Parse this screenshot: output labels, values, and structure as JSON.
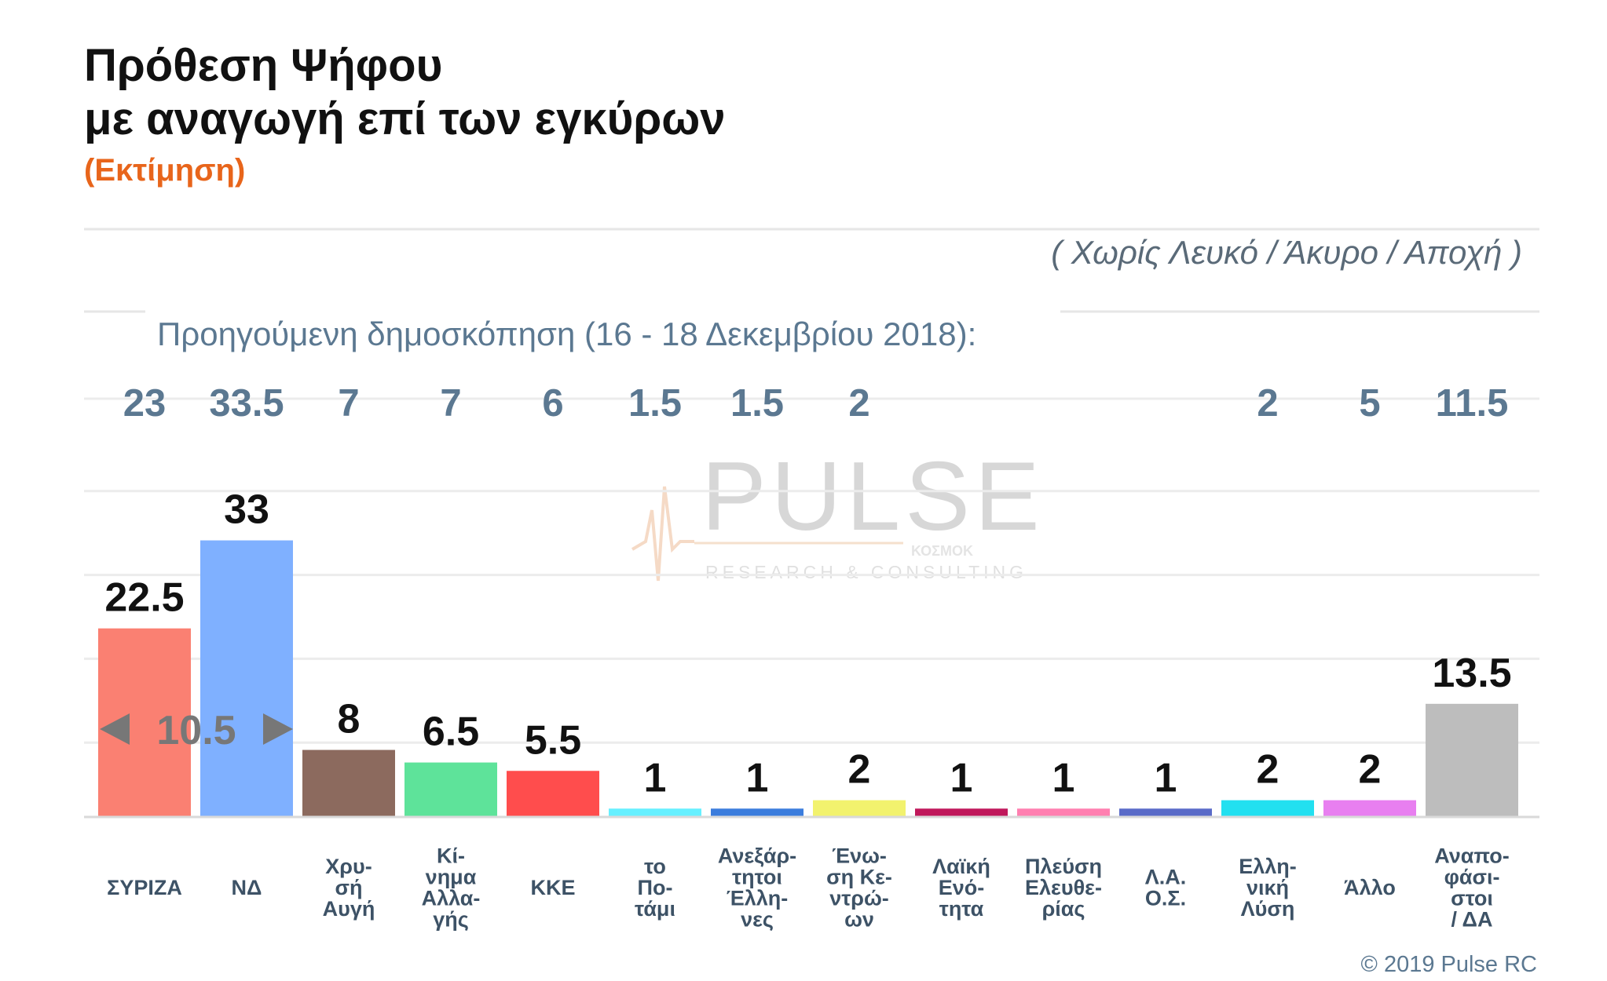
{
  "title_line1": "Πρόθεση Ψήφου",
  "title_line2": "με αναγωγή επί των εγκύρων",
  "subtitle": "(Εκτίμηση)",
  "note": "( Χωρίς Λευκό / Άκυρο / Αποχή )",
  "previous_label": "Προηγούμενη δημοσκόπηση (16 - 18 Δεκεμβρίου 2018):",
  "source": "© 2019 Pulse RC",
  "watermark": {
    "brand": "PULSE",
    "tagline": "RESEARCH & CONSULTING",
    "partner": "ΚΟΣΜΟΚ"
  },
  "chart_data": {
    "type": "bar",
    "title": "Πρόθεση Ψήφου με αναγωγή επί των εγκύρων",
    "subtitle": "(Εκτίμηση)",
    "categories": [
      [
        "ΣΥΡΙΖΑ"
      ],
      [
        "ΝΔ"
      ],
      [
        "Χρυ-",
        "σή",
        "Αυγή"
      ],
      [
        "Κί-",
        "νημα",
        "Αλλα-",
        "γής"
      ],
      [
        "ΚΚΕ"
      ],
      [
        "το",
        "Πο-",
        "τάμι"
      ],
      [
        "Ανεξάρ-",
        "τητοι",
        "Έλλη-",
        "νες"
      ],
      [
        "Ένω-",
        "ση Κε-",
        "ντρώ-",
        "ων"
      ],
      [
        "Λαϊκή",
        "Ενό-",
        "τητα"
      ],
      [
        "Πλεύση",
        "Ελευθε-",
        "ρίας"
      ],
      [
        "Λ.Α.",
        "Ο.Σ."
      ],
      [
        "Ελλη-",
        "νική",
        "Λύση"
      ],
      [
        "Άλλο"
      ],
      [
        "Αναπο-",
        "φάσι-",
        "στοι",
        "/ ΔΑ"
      ]
    ],
    "values": [
      22.5,
      33,
      8,
      6.5,
      5.5,
      1,
      1,
      2,
      1,
      1,
      1,
      2,
      2,
      13.5
    ],
    "value_labels": [
      "22.5",
      "33",
      "8",
      "6.5",
      "5.5",
      "1",
      "1",
      "2",
      "1",
      "1",
      "1",
      "2",
      "2",
      "13.5"
    ],
    "previous_values": [
      "23",
      "33.5",
      "7",
      "7",
      "6",
      "1.5",
      "1.5",
      "2",
      "",
      "",
      "",
      "2",
      "5",
      "11.5"
    ],
    "colors": [
      "#fa8072",
      "#7fb0ff",
      "#8c6a5e",
      "#5ee39a",
      "#ff4d4d",
      "#66f0ff",
      "#3b7ddd",
      "#f2f26e",
      "#c0185b",
      "#ff7fb0",
      "#5a6bc8",
      "#22e0f0",
      "#e87ff0",
      "#bdbdbd"
    ],
    "gap": {
      "label": "10.5",
      "between": [
        0,
        1
      ]
    },
    "ylim": [
      0,
      40
    ],
    "grid": true,
    "legend": "none"
  }
}
